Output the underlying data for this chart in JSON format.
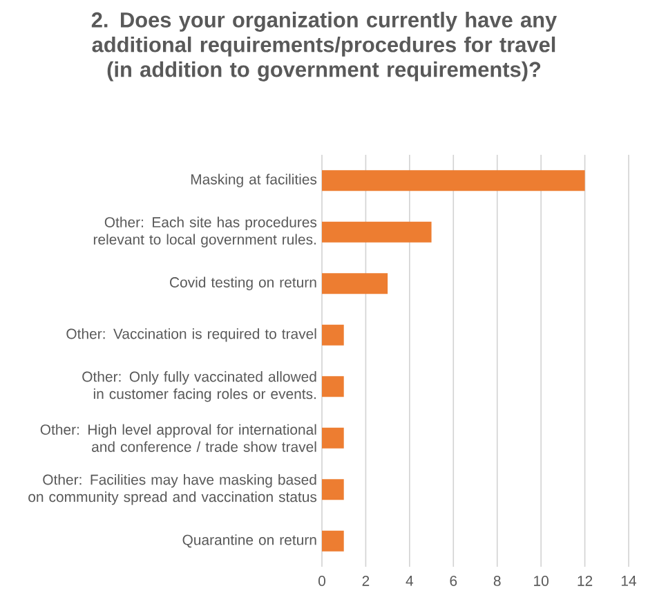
{
  "chart_data": {
    "type": "bar",
    "orientation": "horizontal",
    "title": "2. Does your organization currently have any additional requirements/procedures for travel (in addition to government requirements)?",
    "categories": [
      "Masking at facilities",
      "Other: Each site has procedures relevant to local government rules.",
      "Covid testing on return",
      "Other: Vaccination is required to travel",
      "Other: Only fully vaccinated allowed in customer facing roles or events.",
      "Other: High level approval for international and conference / trade show travel",
      "Other: Facilities may have masking based on community spread and vaccination status",
      "Quarantine on return"
    ],
    "values": [
      12,
      5,
      3,
      1,
      1,
      1,
      1,
      1
    ],
    "color": "#ed7d31",
    "xlim": [
      0,
      14
    ],
    "xticks": [
      0,
      2,
      4,
      6,
      8,
      10,
      12,
      14
    ],
    "grid": "x"
  }
}
